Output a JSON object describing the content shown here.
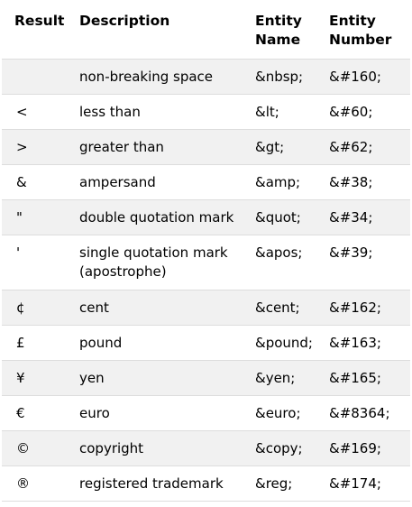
{
  "table": {
    "headers": [
      "Result",
      "Description",
      "Entity\nName",
      "Entity\nNumber"
    ],
    "header_lines": {
      "result": "Result",
      "description": "Description",
      "entity_name_1": "Entity",
      "entity_name_2": "Name",
      "entity_number_1": "Entity",
      "entity_number_2": "Number"
    },
    "rows": [
      {
        "result": "",
        "description": "non-breaking space",
        "entity_name": "&nbsp;",
        "entity_number": "&#160;"
      },
      {
        "result": "<",
        "description": "less than",
        "entity_name": "&lt;",
        "entity_number": "&#60;"
      },
      {
        "result": ">",
        "description": "greater than",
        "entity_name": "&gt;",
        "entity_number": "&#62;"
      },
      {
        "result": "&",
        "description": "ampersand",
        "entity_name": "&amp;",
        "entity_number": "&#38;"
      },
      {
        "result": "\"",
        "description": "double quotation mark",
        "entity_name": "&quot;",
        "entity_number": "&#34;"
      },
      {
        "result": "'",
        "description": "single quotation mark (apostrophe)",
        "entity_name": "&apos;",
        "entity_number": "&#39;"
      },
      {
        "result": "¢",
        "description": "cent",
        "entity_name": "&cent;",
        "entity_number": "&#162;"
      },
      {
        "result": "£",
        "description": "pound",
        "entity_name": "&pound;",
        "entity_number": "&#163;"
      },
      {
        "result": "¥",
        "description": "yen",
        "entity_name": "&yen;",
        "entity_number": "&#165;"
      },
      {
        "result": "€",
        "description": "euro",
        "entity_name": "&euro;",
        "entity_number": "&#8364;"
      },
      {
        "result": "©",
        "description": "copyright",
        "entity_name": "&copy;",
        "entity_number": "&#169;"
      },
      {
        "result": "®",
        "description": "registered trademark",
        "entity_name": "&reg;",
        "entity_number": "&#174;"
      }
    ]
  },
  "colors": {
    "stripe": "#f1f1f1",
    "border": "#dddddd",
    "text": "#000000"
  }
}
